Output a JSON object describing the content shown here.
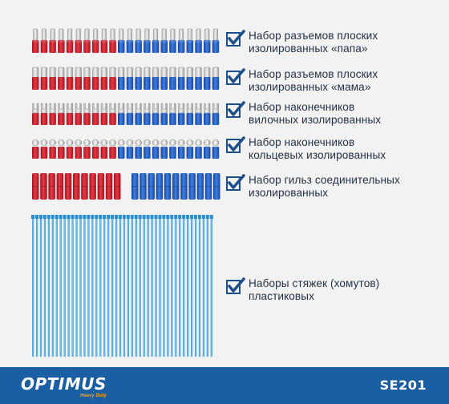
{
  "features": [
    {
      "line1": "Набор разъемов плоских",
      "line2": "изолированных «папа»"
    },
    {
      "line1": "Набор разъемов плоских",
      "line2": "изолированных «мама»"
    },
    {
      "line1": "Набор наконечников",
      "line2": "вилочных изолированных"
    },
    {
      "line1": "Набор наконечников",
      "line2": "кольцевых изолированных"
    },
    {
      "line1": "Набор гильз соединительных",
      "line2": "изолированных"
    },
    {
      "line1": "Наборы стяжек (хомутов)",
      "line2": "пластиковых"
    }
  ],
  "footer": {
    "brand": "OPTIMUS",
    "tagline": "Heavy Duty",
    "model": "SE201"
  },
  "colors": {
    "red": "#d4232f",
    "blue": "#1f63c6",
    "tie": "#3aa3de",
    "footer": "#1a5ea4",
    "check": "#1c4f8a",
    "accent": "#f6a11f"
  },
  "icons": [
    "checkmark-box-icon"
  ]
}
